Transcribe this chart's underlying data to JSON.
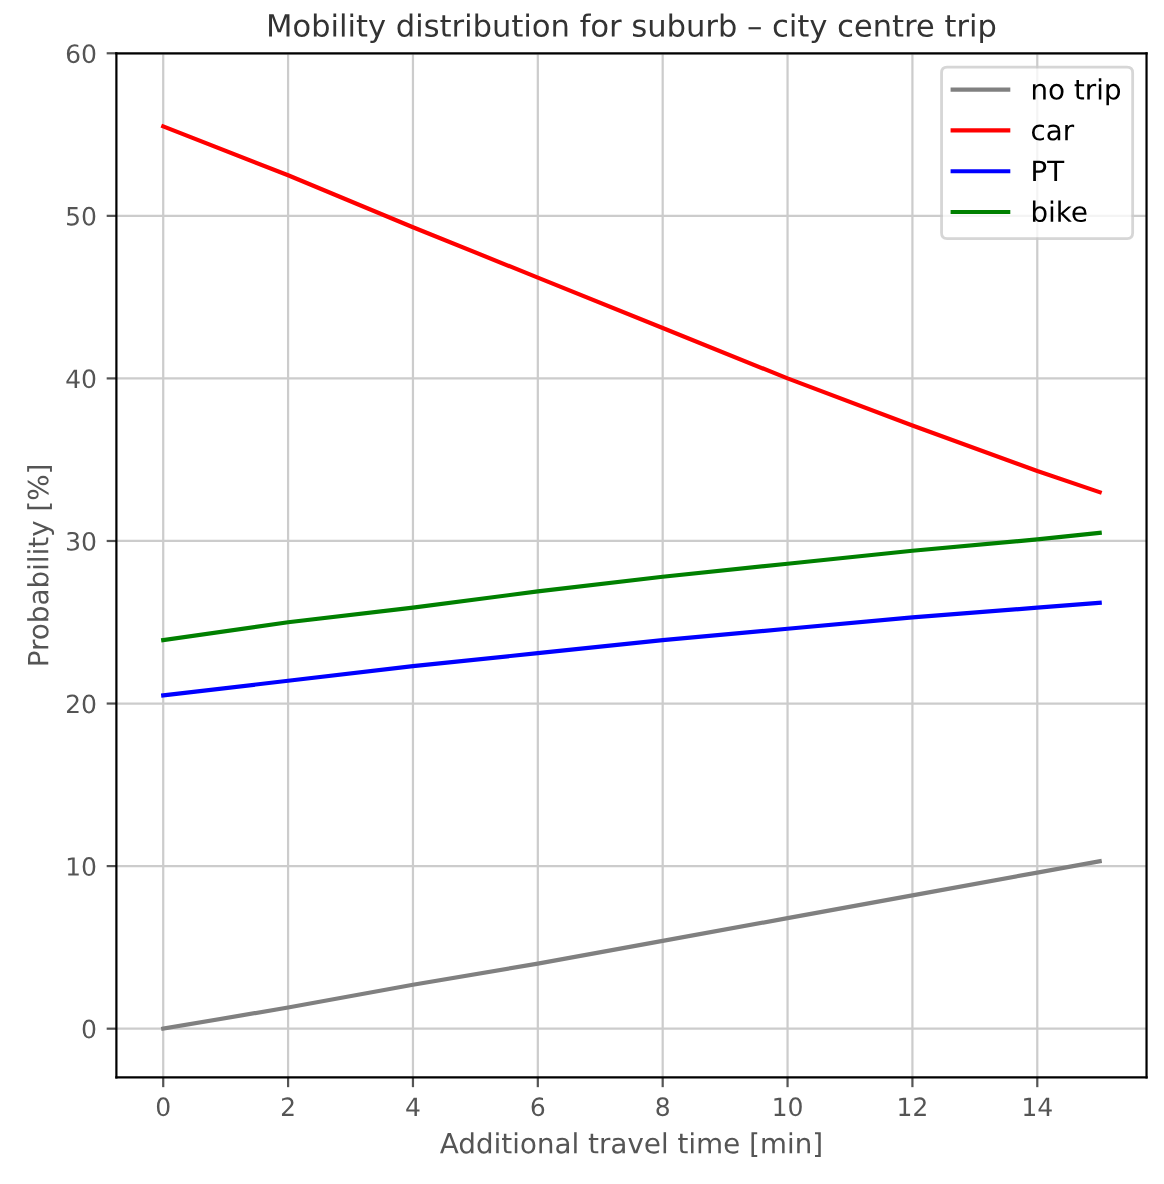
{
  "chart_data": {
    "type": "line",
    "title": "Mobility distribution for suburb – city centre trip",
    "xlabel": "Additional travel time [min]",
    "ylabel": "Probability [%]",
    "x": [
      0,
      2,
      4,
      6,
      8,
      10,
      12,
      14,
      15
    ],
    "series": [
      {
        "name": "no trip",
        "color": "#808080",
        "values": [
          0,
          1.3,
          2.7,
          4.0,
          5.4,
          6.8,
          8.2,
          9.6,
          10.3
        ]
      },
      {
        "name": "car",
        "color": "#ff0000",
        "values": [
          55.5,
          52.5,
          49.3,
          46.2,
          43.1,
          40.0,
          37.1,
          34.3,
          33.0
        ]
      },
      {
        "name": "PT",
        "color": "#0000ff",
        "values": [
          20.5,
          21.4,
          22.3,
          23.1,
          23.9,
          24.6,
          25.3,
          25.9,
          26.2
        ]
      },
      {
        "name": "bike",
        "color": "#008000",
        "values": [
          23.9,
          25.0,
          25.9,
          26.9,
          27.8,
          28.6,
          29.4,
          30.1,
          30.5
        ]
      }
    ],
    "xlim": [
      -0.75,
      15.75
    ],
    "ylim": [
      -3,
      60
    ],
    "xticks": [
      0,
      2,
      4,
      6,
      8,
      10,
      12,
      14
    ],
    "yticks": [
      0,
      10,
      20,
      30,
      40,
      50,
      60
    ],
    "grid": true,
    "legend": "top right",
    "line_style": "solid",
    "marker": "none"
  }
}
